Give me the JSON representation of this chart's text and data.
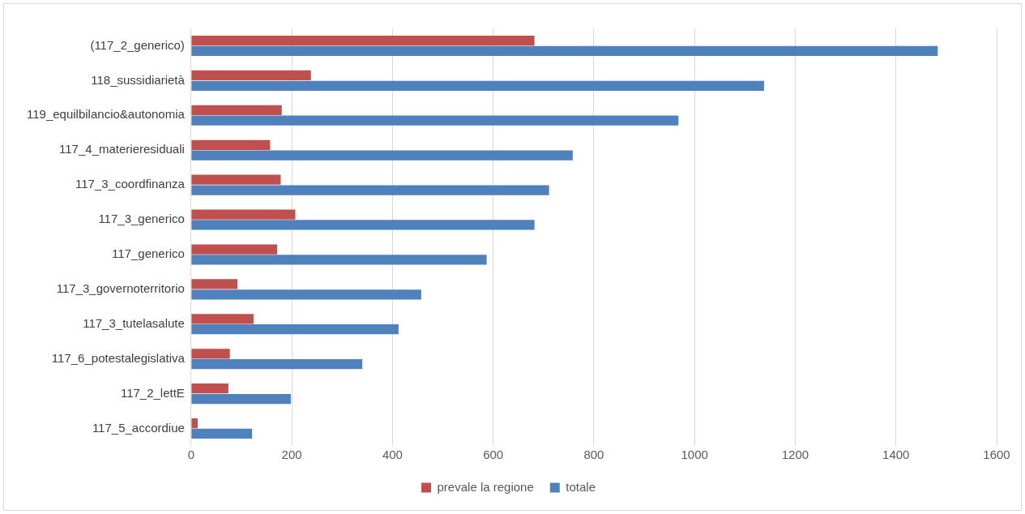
{
  "chart_data": {
    "type": "bar",
    "orientation": "horizontal",
    "categories": [
      "(117_2_generico)",
      "118_sussidiarietà",
      "119_equilbilancio&autonomia",
      "117_4_materieresiduali",
      "117_3_coordfinanza",
      "117_3_generico",
      "117_generico",
      "117_3_governoterritorio",
      "117_3_tutelasalute",
      "117_6_potestalegislativa",
      "117_2_lettE",
      "117_5_accordiue"
    ],
    "series": [
      {
        "name": "prevale la regione",
        "color": "#c0504d",
        "values": [
          682,
          238,
          180,
          157,
          178,
          207,
          171,
          92,
          124,
          77,
          74,
          13
        ]
      },
      {
        "name": "totale",
        "color": "#4f81bd",
        "values": [
          1483,
          1138,
          968,
          758,
          711,
          682,
          587,
          457,
          412,
          340,
          198,
          121
        ]
      }
    ],
    "xlim": [
      0,
      1600
    ],
    "xticks": [
      0,
      200,
      400,
      600,
      800,
      1000,
      1200,
      1400,
      1600
    ],
    "grid": "x",
    "legend": "bottom"
  }
}
